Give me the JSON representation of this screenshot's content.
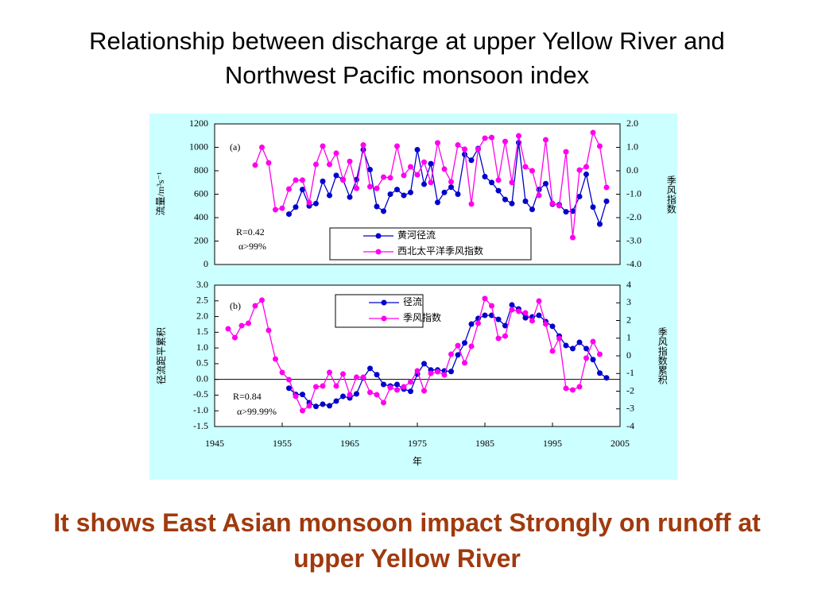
{
  "title": "Relationship between discharge at upper Yellow River and Northwest Pacific monsoon index",
  "caption": "It shows East Asian monsoon impact Strongly on runoff at upper Yellow River",
  "chart_data": [
    {
      "type": "line",
      "label": "(a)",
      "annotations": [
        "R=0.42",
        "α>99%"
      ],
      "ylabel": "流量/m³s⁻¹",
      "y2label": "季风指数",
      "x": [
        1951,
        1952,
        1953,
        1954,
        1955,
        1956,
        1957,
        1958,
        1959,
        1960,
        1961,
        1962,
        1963,
        1964,
        1965,
        1966,
        1967,
        1968,
        1969,
        1970,
        1971,
        1972,
        1973,
        1974,
        1975,
        1976,
        1977,
        1978,
        1979,
        1980,
        1981,
        1982,
        1983,
        1984,
        1985,
        1986,
        1987,
        1988,
        1989,
        1990,
        1991,
        1992,
        1993,
        1994,
        1995,
        1996,
        1997,
        1998,
        1999,
        2000,
        2001,
        2002,
        2003
      ],
      "xlim": [
        1945,
        2005
      ],
      "ylim": [
        0,
        1200
      ],
      "yticks": [
        0,
        200,
        400,
        600,
        800,
        1000,
        1200
      ],
      "y2lim": [
        -4,
        2
      ],
      "y2ticks": [
        {
          "value": -4,
          "label": "-4.0"
        },
        {
          "value": -3,
          "label": "-3.0"
        },
        {
          "value": -2,
          "label": "-2.0"
        },
        {
          "value": -1,
          "label": "-1.0"
        },
        {
          "value": 0,
          "label": "0.0"
        },
        {
          "value": 1,
          "label": "1.0"
        },
        {
          "value": 2,
          "label": "2.0"
        }
      ],
      "series": [
        {
          "name": "黄河径流",
          "color": "#0000cc",
          "values": [
            null,
            null,
            null,
            null,
            null,
            430,
            490,
            640,
            500,
            520,
            710,
            590,
            760,
            725,
            575,
            725,
            980,
            810,
            495,
            455,
            600,
            640,
            590,
            615,
            980,
            685,
            860,
            530,
            615,
            660,
            600,
            940,
            890,
            990,
            750,
            700,
            630,
            555,
            520,
            1040,
            540,
            470,
            640,
            690,
            515,
            510,
            450,
            455,
            580,
            770,
            490,
            345,
            540
          ]
        },
        {
          "name": "西北太平洋季风指数",
          "color": "#ff00ee",
          "axis": "y2",
          "values": [
            0.24,
            1.0,
            0.34,
            -1.66,
            -1.6,
            -0.78,
            -0.4,
            -0.4,
            -1.36,
            0.27,
            1.05,
            0.27,
            0.75,
            -0.4,
            0.4,
            -0.75,
            1.1,
            -0.68,
            -0.75,
            -0.27,
            -0.3,
            1.05,
            -0.2,
            0.17,
            -0.17,
            0.37,
            -0.5,
            1.19,
            0.07,
            -0.47,
            1.1,
            0.92,
            -1.42,
            0.92,
            1.39,
            1.42,
            -0.4,
            1.25,
            -0.5,
            1.49,
            0.17,
            0,
            -1.05,
            1.32,
            -1.39,
            -1.49,
            0.81,
            -2.85,
            0.03,
            0.17,
            1.63,
            1.05,
            -0.71
          ]
        }
      ]
    },
    {
      "type": "line",
      "label": "(b)",
      "annotations": [
        "R=0.84",
        "α>99.99%"
      ],
      "ylabel": "径流距平累积",
      "y2label": "季风指数累积",
      "xlabel": "年",
      "x": [
        1947,
        1948,
        1949,
        1950,
        1951,
        1952,
        1953,
        1954,
        1955,
        1956,
        1957,
        1958,
        1959,
        1960,
        1961,
        1962,
        1963,
        1964,
        1965,
        1966,
        1967,
        1968,
        1969,
        1970,
        1971,
        1972,
        1973,
        1974,
        1975,
        1976,
        1977,
        1978,
        1979,
        1980,
        1981,
        1982,
        1983,
        1984,
        1985,
        1986,
        1987,
        1988,
        1989,
        1990,
        1991,
        1992,
        1993,
        1994,
        1995,
        1996,
        1997,
        1998,
        1999,
        2000,
        2001,
        2002,
        2003
      ],
      "xlim": [
        1945,
        2005
      ],
      "xticks": [
        1945,
        1955,
        1965,
        1975,
        1985,
        1995,
        2005
      ],
      "ylim": [
        -1.5,
        3
      ],
      "yticks": [
        -1.5,
        {
          "value": -1,
          "label": "-1.0"
        },
        -0.5,
        {
          "value": 0,
          "label": "0.0"
        },
        0.5,
        {
          "value": 1,
          "label": "1.0"
        },
        1.5,
        {
          "value": 2,
          "label": "2.0"
        },
        2.5,
        {
          "value": 3,
          "label": "3.0"
        }
      ],
      "y2lim": [
        -4,
        4
      ],
      "y2ticks": [
        -4,
        -3,
        -2,
        -1,
        0,
        1,
        2,
        3,
        4
      ],
      "series": [
        {
          "name": "径流",
          "color": "#0000cc",
          "values": [
            null,
            null,
            null,
            null,
            null,
            null,
            null,
            null,
            null,
            -0.28,
            -0.48,
            -0.48,
            -0.74,
            -0.86,
            -0.79,
            -0.84,
            -0.69,
            -0.54,
            -0.59,
            -0.46,
            0.05,
            0.35,
            0.15,
            -0.16,
            -0.21,
            -0.16,
            -0.31,
            -0.38,
            0.17,
            0.5,
            0.3,
            0.3,
            0.27,
            0.25,
            0.78,
            1.16,
            1.76,
            1.94,
            2.04,
            2.04,
            1.91,
            1.71,
            2.37,
            2.24,
            1.96,
            1.99,
            2.04,
            1.84,
            1.69,
            1.38,
            1.08,
            0.98,
            1.18,
            0.98,
            0.63,
            0.2,
            0.05
          ]
        },
        {
          "name": "季风指数",
          "color": "#ff00ee",
          "axis": "y2",
          "values": [
            1.53,
            1.03,
            1.71,
            1.84,
            2.83,
            3.15,
            1.44,
            -0.18,
            -0.94,
            -1.35,
            -2.29,
            -3.1,
            -2.83,
            -1.75,
            -1.71,
            -0.94,
            -1.71,
            -1.03,
            -2.2,
            -1.21,
            -1.21,
            -2.07,
            -2.2,
            -2.65,
            -1.8,
            -1.93,
            -1.75,
            -1.48,
            -0.85,
            -1.98,
            -0.99,
            -0.9,
            -1.08,
            0.09,
            0.58,
            -0.4,
            0.54,
            1.84,
            3.24,
            2.83,
            0.99,
            1.12,
            2.61,
            2.52,
            2.43,
            1.98,
            3.1,
            1.8,
            0.27,
            0.99,
            -1.84,
            -1.93,
            -1.75,
            -0.13,
            0.81,
            0.09,
            null
          ]
        }
      ]
    }
  ]
}
